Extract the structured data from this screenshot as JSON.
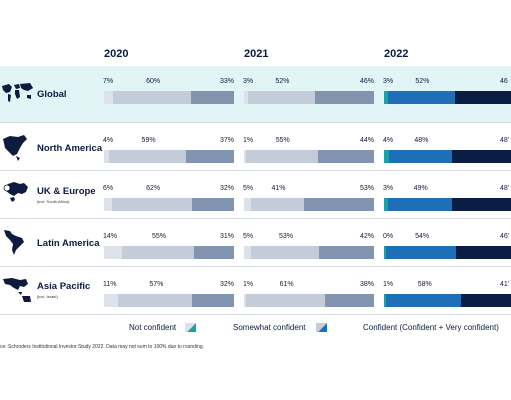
{
  "chart_data": {
    "type": "bar",
    "orientation": "horizontal-stacked-100",
    "years": [
      "2020",
      "2021",
      "2022"
    ],
    "categories": [
      "Global",
      "North America",
      "UK & Europe",
      "Latin America",
      "Asia Pacific"
    ],
    "category_notes": [
      "",
      "",
      "(incl. South Africa)",
      "",
      "(incl. Israel)"
    ],
    "series": [
      {
        "name": "Not confident",
        "colors": {
          "2020": "#dde2ea",
          "2021": "#dde2ea",
          "2022": "#1aa3a6"
        }
      },
      {
        "name": "Somewhat confident",
        "colors": {
          "2020": "#c4ccd9",
          "2021": "#c4ccd9",
          "2022": "#1f6fb8"
        }
      },
      {
        "name": "Confident (Confident + Very confident)",
        "colors": {
          "2020": "#8294b0",
          "2021": "#8294b0",
          "2022": "#0c1d45"
        }
      }
    ],
    "values": {
      "2020": [
        [
          7,
          60,
          33
        ],
        [
          4,
          59,
          37
        ],
        [
          6,
          62,
          32
        ],
        [
          14,
          55,
          31
        ],
        [
          11,
          57,
          32
        ]
      ],
      "2021": [
        [
          3,
          52,
          46
        ],
        [
          1,
          55,
          44
        ],
        [
          5,
          41,
          53
        ],
        [
          5,
          53,
          42
        ],
        [
          1,
          61,
          38
        ]
      ],
      "2022": [
        [
          3,
          52,
          46
        ],
        [
          4,
          48,
          48
        ],
        [
          3,
          49,
          48
        ],
        [
          0,
          54,
          46
        ],
        [
          1,
          58,
          41
        ]
      ]
    },
    "value_labels": {
      "2020": [
        [
          "7%",
          "60%",
          "33%"
        ],
        [
          "4%",
          "59%",
          "37%"
        ],
        [
          "6%",
          "62%",
          "32%"
        ],
        [
          "14%",
          "55%",
          "31%"
        ],
        [
          "11%",
          "57%",
          "32%"
        ]
      ],
      "2021": [
        [
          "3%",
          "52%",
          "46%"
        ],
        [
          "1%",
          "55%",
          "44%"
        ],
        [
          "5%",
          "41%",
          "53%"
        ],
        [
          "5%",
          "53%",
          "42%"
        ],
        [
          "1%",
          "61%",
          "38%"
        ]
      ],
      "2022": [
        [
          "3%",
          "52%",
          "46"
        ],
        [
          "4%",
          "48%",
          "48'"
        ],
        [
          "3%",
          "49%",
          "48'"
        ],
        [
          "0%",
          "54%",
          "46'"
        ],
        [
          "1%",
          "58%",
          "41'"
        ]
      ]
    },
    "legend_position": "bottom",
    "highlight_row": "Global",
    "source": "ce: Schroders Institutional Investor Study 2022. Data may not sum to 100% due to rounding."
  },
  "icons": [
    "world-map-icon",
    "north-america-map-icon",
    "europe-map-icon",
    "latin-america-map-icon",
    "asia-pacific-map-icon"
  ],
  "legend_swatch_colors": [
    "#1aa3a6",
    "#c4ccd9",
    "#0c1d45"
  ]
}
